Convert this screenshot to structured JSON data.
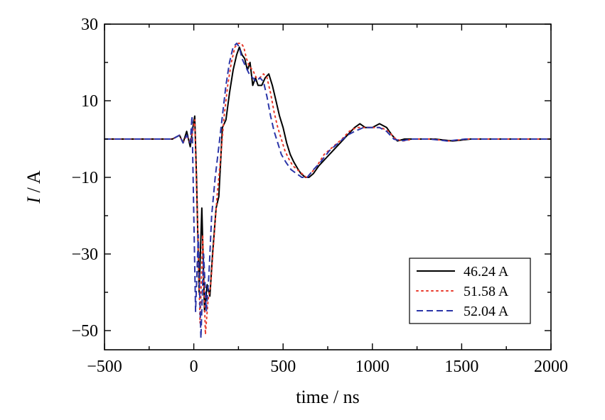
{
  "chart_data": {
    "type": "line",
    "title": "",
    "xlabel": "time / ns",
    "ylabel_italic": "I",
    "ylabel_rest": " / A",
    "xlim": [
      -500,
      2000
    ],
    "ylim": [
      -55,
      30
    ],
    "xticks": [
      -500,
      0,
      500,
      1000,
      1500,
      2000
    ],
    "xtick_labels": [
      "−500",
      "0",
      "500",
      "1000",
      "1500",
      "2000"
    ],
    "yticks": [
      -50,
      -30,
      -10,
      10,
      30
    ],
    "ytick_labels": [
      "−50",
      "−30",
      "−10",
      "10",
      "30"
    ],
    "grid": false,
    "legend_position": "bottom-right",
    "series": [
      {
        "name": "46.24 A",
        "color": "#000000",
        "dash": "solid",
        "points": [
          [
            -500,
            0
          ],
          [
            -400,
            0
          ],
          [
            -300,
            0
          ],
          [
            -200,
            0
          ],
          [
            -120,
            0
          ],
          [
            -80,
            1
          ],
          [
            -60,
            -1
          ],
          [
            -40,
            2
          ],
          [
            -20,
            -2
          ],
          [
            -5,
            3
          ],
          [
            5,
            6
          ],
          [
            15,
            -10
          ],
          [
            30,
            -40
          ],
          [
            45,
            -18
          ],
          [
            60,
            -45
          ],
          [
            75,
            -38
          ],
          [
            90,
            -41
          ],
          [
            105,
            -30
          ],
          [
            125,
            -18
          ],
          [
            140,
            -15
          ],
          [
            160,
            3
          ],
          [
            180,
            5
          ],
          [
            200,
            12
          ],
          [
            220,
            18
          ],
          [
            240,
            22
          ],
          [
            255,
            24
          ],
          [
            270,
            22
          ],
          [
            285,
            21
          ],
          [
            300,
            18
          ],
          [
            315,
            20
          ],
          [
            330,
            14
          ],
          [
            345,
            16
          ],
          [
            360,
            14
          ],
          [
            380,
            14
          ],
          [
            400,
            16
          ],
          [
            420,
            17
          ],
          [
            440,
            14
          ],
          [
            460,
            10
          ],
          [
            480,
            6
          ],
          [
            500,
            3
          ],
          [
            520,
            -1
          ],
          [
            540,
            -4
          ],
          [
            560,
            -6
          ],
          [
            585,
            -8
          ],
          [
            600,
            -9
          ],
          [
            625,
            -10
          ],
          [
            645,
            -10
          ],
          [
            670,
            -9
          ],
          [
            700,
            -7
          ],
          [
            740,
            -5
          ],
          [
            780,
            -3
          ],
          [
            820,
            -1
          ],
          [
            860,
            1
          ],
          [
            900,
            3
          ],
          [
            930,
            4
          ],
          [
            960,
            3
          ],
          [
            1000,
            3
          ],
          [
            1040,
            4
          ],
          [
            1080,
            3
          ],
          [
            1110,
            1
          ],
          [
            1140,
            -0.5
          ],
          [
            1180,
            0
          ],
          [
            1250,
            0
          ],
          [
            1350,
            0
          ],
          [
            1450,
            -0.5
          ],
          [
            1550,
            0
          ],
          [
            1650,
            0
          ],
          [
            1800,
            0
          ],
          [
            1900,
            0
          ],
          [
            2000,
            0
          ]
        ]
      },
      {
        "name": "51.58 A",
        "color": "#e8392b",
        "dash": "dot",
        "points": [
          [
            -500,
            0
          ],
          [
            -400,
            0
          ],
          [
            -300,
            0
          ],
          [
            -200,
            0
          ],
          [
            -120,
            0
          ],
          [
            -80,
            1
          ],
          [
            -60,
            -1
          ],
          [
            -40,
            1
          ],
          [
            -20,
            -1
          ],
          [
            -5,
            2
          ],
          [
            5,
            5
          ],
          [
            20,
            -20
          ],
          [
            35,
            -48
          ],
          [
            50,
            -25
          ],
          [
            65,
            -51
          ],
          [
            80,
            -42
          ],
          [
            95,
            -38
          ],
          [
            110,
            -28
          ],
          [
            130,
            -15
          ],
          [
            150,
            -5
          ],
          [
            170,
            6
          ],
          [
            190,
            14
          ],
          [
            210,
            20
          ],
          [
            230,
            24
          ],
          [
            250,
            25
          ],
          [
            265,
            25
          ],
          [
            280,
            24
          ],
          [
            295,
            21
          ],
          [
            310,
            19
          ],
          [
            330,
            18
          ],
          [
            350,
            16
          ],
          [
            370,
            16
          ],
          [
            390,
            17
          ],
          [
            410,
            16
          ],
          [
            430,
            12
          ],
          [
            450,
            7
          ],
          [
            470,
            3
          ],
          [
            490,
            0
          ],
          [
            510,
            -3
          ],
          [
            530,
            -5
          ],
          [
            555,
            -7
          ],
          [
            580,
            -8
          ],
          [
            605,
            -9
          ],
          [
            630,
            -10
          ],
          [
            655,
            -9
          ],
          [
            690,
            -7
          ],
          [
            730,
            -4
          ],
          [
            780,
            -2
          ],
          [
            830,
            0
          ],
          [
            870,
            2
          ],
          [
            910,
            3
          ],
          [
            950,
            3
          ],
          [
            1000,
            3
          ],
          [
            1050,
            3
          ],
          [
            1090,
            2
          ],
          [
            1130,
            0
          ],
          [
            1170,
            -0.5
          ],
          [
            1230,
            0
          ],
          [
            1330,
            0
          ],
          [
            1430,
            -0.5
          ],
          [
            1530,
            0
          ],
          [
            1650,
            0
          ],
          [
            1800,
            0
          ],
          [
            1900,
            0
          ],
          [
            2000,
            0
          ]
        ]
      },
      {
        "name": "52.04 A",
        "color": "#2b35a8",
        "dash": "dash",
        "points": [
          [
            -500,
            0
          ],
          [
            -400,
            0
          ],
          [
            -300,
            0
          ],
          [
            -200,
            0
          ],
          [
            -120,
            0
          ],
          [
            -80,
            1
          ],
          [
            -60,
            -1
          ],
          [
            -40,
            1
          ],
          [
            -20,
            -1
          ],
          [
            -10,
            6
          ],
          [
            0,
            -20
          ],
          [
            10,
            -45
          ],
          [
            25,
            -25
          ],
          [
            40,
            -52
          ],
          [
            55,
            -30
          ],
          [
            70,
            -45
          ],
          [
            85,
            -35
          ],
          [
            100,
            -20
          ],
          [
            120,
            -10
          ],
          [
            140,
            -2
          ],
          [
            160,
            6
          ],
          [
            180,
            14
          ],
          [
            200,
            20
          ],
          [
            220,
            24
          ],
          [
            240,
            25
          ],
          [
            255,
            24
          ],
          [
            270,
            21
          ],
          [
            290,
            19
          ],
          [
            310,
            17
          ],
          [
            330,
            16
          ],
          [
            350,
            15
          ],
          [
            370,
            16
          ],
          [
            390,
            15
          ],
          [
            410,
            11
          ],
          [
            430,
            6
          ],
          [
            450,
            2
          ],
          [
            470,
            -1
          ],
          [
            490,
            -4
          ],
          [
            515,
            -6
          ],
          [
            545,
            -8
          ],
          [
            575,
            -9
          ],
          [
            605,
            -10
          ],
          [
            635,
            -10
          ],
          [
            670,
            -8
          ],
          [
            710,
            -6
          ],
          [
            760,
            -3
          ],
          [
            810,
            -1
          ],
          [
            860,
            1
          ],
          [
            900,
            2
          ],
          [
            950,
            3
          ],
          [
            1000,
            3
          ],
          [
            1040,
            3
          ],
          [
            1080,
            2
          ],
          [
            1120,
            0
          ],
          [
            1160,
            -0.5
          ],
          [
            1220,
            0
          ],
          [
            1320,
            0
          ],
          [
            1420,
            -0.5
          ],
          [
            1520,
            0
          ],
          [
            1650,
            0
          ],
          [
            1800,
            0
          ],
          [
            1900,
            0
          ],
          [
            2000,
            0
          ]
        ]
      }
    ]
  }
}
